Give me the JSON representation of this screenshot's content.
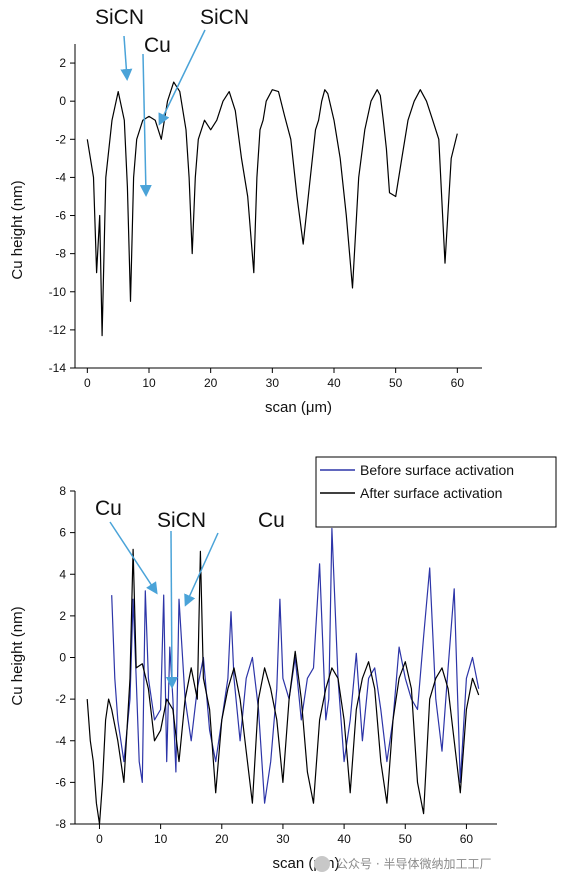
{
  "chart_data": [
    {
      "type": "line",
      "xlabel": "scan (μm)",
      "ylabel": "Cu height (nm)",
      "xlim": [
        -2,
        64
      ],
      "ylim": [
        -14,
        3
      ],
      "xticks": [
        0,
        10,
        20,
        30,
        40,
        50,
        60
      ],
      "yticks": [
        2,
        0,
        -2,
        -4,
        -6,
        -8,
        -10,
        -12,
        -14
      ],
      "colors": {
        "series": "#000000",
        "arrow": "#4aa3d8"
      },
      "series": [
        {
          "x": [
            0,
            1,
            1.5,
            2,
            2.4,
            3,
            4,
            5,
            6,
            6.5,
            7,
            7.5,
            8,
            9,
            10,
            11,
            12,
            13,
            14,
            15,
            16,
            16.5,
            17,
            17.5,
            18,
            19,
            20,
            21,
            22,
            23,
            24,
            25,
            26,
            27,
            27.5,
            28,
            28.5,
            29,
            30,
            31,
            32,
            33,
            34,
            35,
            36,
            37,
            37.5,
            38,
            38.5,
            39,
            40,
            41,
            42,
            43,
            44,
            45,
            46,
            47,
            47.5,
            48,
            48.5,
            49,
            50,
            51,
            52,
            53,
            54,
            55,
            56,
            57,
            58,
            59,
            60
          ],
          "y": [
            -2,
            -4,
            -9,
            -6,
            -12.3,
            -4,
            -1,
            0.5,
            -1,
            -4.5,
            -10.5,
            -4,
            -2,
            -1,
            -0.8,
            -1,
            -2,
            0,
            1,
            0.5,
            -1.5,
            -4,
            -8,
            -4,
            -2,
            -1,
            -1.5,
            -1,
            0,
            0.5,
            -0.5,
            -3,
            -5,
            -9,
            -4,
            -1.5,
            -1,
            0,
            0.6,
            0.5,
            -0.8,
            -2,
            -5,
            -7.5,
            -4.5,
            -1.5,
            -1,
            0,
            0.6,
            0.4,
            -1,
            -3,
            -6,
            -9.8,
            -4,
            -1.5,
            0,
            0.6,
            0.3,
            -1,
            -2.5,
            -4.8,
            -5,
            -3,
            -1,
            0,
            0.6,
            0,
            -1,
            -2,
            -8.5,
            -3,
            -1.7
          ]
        }
      ],
      "annotations": [
        "SiCN",
        "Cu",
        "SiCN"
      ]
    },
    {
      "type": "line",
      "xlabel": "scan (μm)",
      "ylabel": "Cu height (nm)",
      "xlim": [
        -4,
        65
      ],
      "ylim": [
        -8,
        8
      ],
      "xticks": [
        0,
        10,
        20,
        30,
        40,
        50,
        60
      ],
      "yticks": [
        8,
        6,
        4,
        2,
        0,
        -2,
        -4,
        -6,
        -8
      ],
      "legend_position": "top-right",
      "colors": {
        "before": "#2d35a8",
        "after": "#000000",
        "arrow": "#4aa3d8"
      },
      "series": [
        {
          "name": "Before surface activation",
          "x": [
            2,
            2.5,
            3,
            4,
            5,
            5.5,
            6,
            6.5,
            7,
            7.5,
            8,
            9,
            10,
            10.5,
            11,
            11.5,
            12,
            12.5,
            13,
            14,
            15,
            16,
            17,
            18,
            19,
            20,
            21,
            21.5,
            22,
            23,
            24,
            25,
            26,
            27,
            28,
            29,
            29.5,
            30,
            31,
            32,
            33,
            34,
            35,
            36,
            37,
            37.5,
            38,
            39,
            40,
            41,
            42,
            43,
            44,
            45,
            46,
            47,
            48,
            49,
            50,
            51,
            52,
            53,
            54,
            55,
            56,
            57,
            58,
            59,
            60,
            61,
            62
          ],
          "y": [
            3,
            -1,
            -3,
            -5,
            -2,
            2.8,
            -1,
            -5,
            -6,
            3.2,
            -1,
            -3,
            -2.5,
            3,
            -5,
            0.5,
            -2,
            -5.5,
            2.8,
            -2,
            -4,
            -1.5,
            0,
            -3.5,
            -5,
            -3,
            -1,
            2.2,
            -1,
            -4,
            -1,
            0,
            -2.5,
            -7,
            -5,
            -1.5,
            2.8,
            -1,
            -2,
            0,
            -3,
            -1,
            -0.5,
            4.5,
            -3,
            -2,
            6.2,
            -1,
            -5,
            -3,
            0.2,
            -4,
            -1,
            -0.5,
            -2.5,
            -5,
            -3,
            0.5,
            -1,
            -2,
            -2.5,
            1,
            4.3,
            -2,
            -4.5,
            -0.5,
            3.3,
            -6,
            -1,
            0,
            -1.5
          ]
        },
        {
          "name": "After surface activation",
          "x": [
            -2,
            -1.5,
            -1,
            -0.5,
            0,
            0.5,
            1,
            1.5,
            2,
            3,
            4,
            5,
            5.5,
            6,
            7,
            8,
            9,
            10,
            11,
            12,
            13,
            14,
            15,
            16,
            16.5,
            17,
            18,
            19,
            20,
            21,
            22,
            23,
            24,
            25,
            26,
            27,
            28,
            29,
            30,
            31,
            32,
            33,
            34,
            35,
            36,
            37,
            38,
            39,
            40,
            41,
            42,
            43,
            44,
            45,
            46,
            47,
            48,
            49,
            50,
            51,
            52,
            53,
            54,
            55,
            56,
            57,
            58,
            59,
            60,
            61,
            62
          ],
          "y": [
            -2,
            -4,
            -5,
            -7,
            -8,
            -6,
            -3,
            -2,
            -2.5,
            -4,
            -6,
            -1,
            5.2,
            -0.5,
            -0.3,
            -1.5,
            -4,
            -3.5,
            -2,
            -2.5,
            -5,
            -2,
            -0.5,
            -2,
            5.1,
            -1,
            -2.5,
            -6.5,
            -3,
            -1.5,
            -0.5,
            -2,
            -4.5,
            -7,
            -2,
            -0.5,
            -1.5,
            -3,
            -6,
            -2,
            0.3,
            -2,
            -5.5,
            -7,
            -3,
            -1.5,
            -0.5,
            -1,
            -3,
            -6.5,
            -2.5,
            -1,
            -0.2,
            -1.5,
            -5,
            -7,
            -3,
            -1,
            -0.2,
            -1.5,
            -6,
            -7.5,
            -2,
            -1,
            -0.5,
            -1.5,
            -4,
            -6.5,
            -2.5,
            -1,
            -1.8
          ]
        }
      ],
      "annotations": [
        "Cu",
        "SiCN",
        "Cu"
      ]
    }
  ],
  "watermark": "公众号 · 半导体微纳加工工厂"
}
